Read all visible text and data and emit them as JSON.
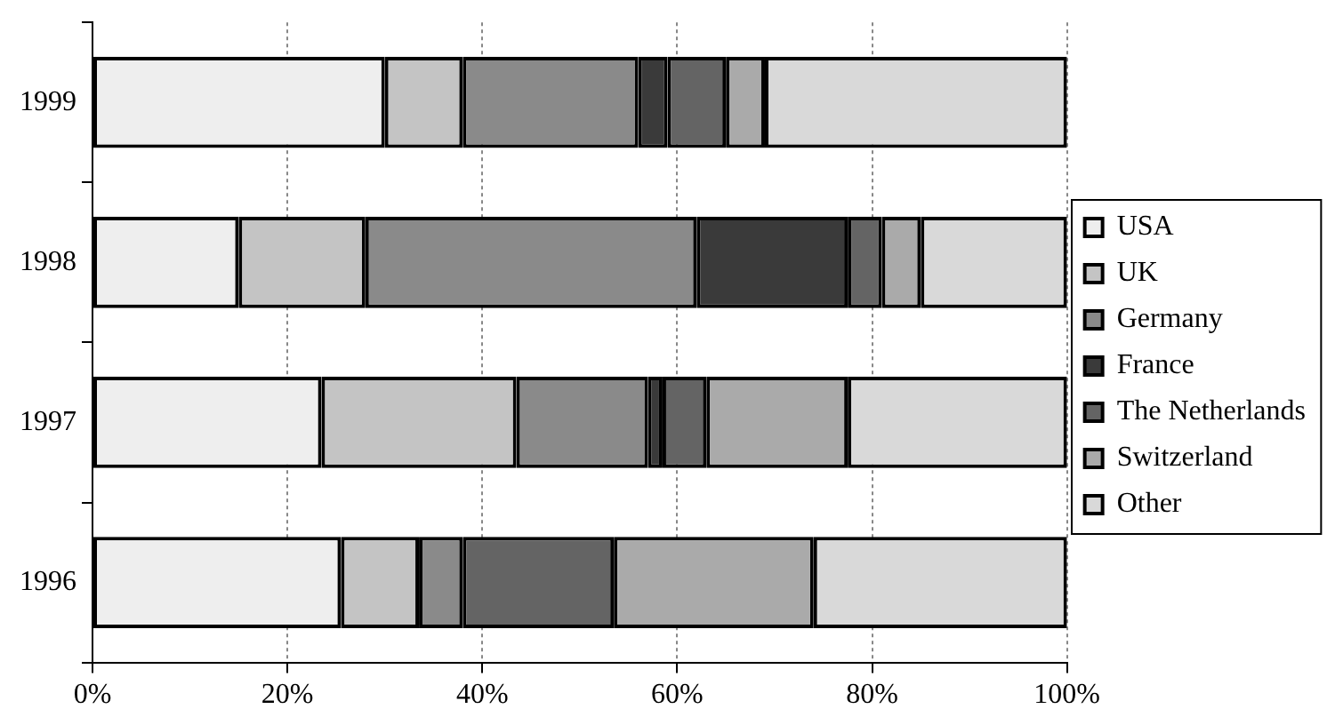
{
  "chart_data": {
    "type": "bar",
    "orientation": "horizontal",
    "stacked": true,
    "categories": [
      "1999",
      "1998",
      "1997",
      "1996"
    ],
    "series": [
      {
        "name": "USA",
        "color": "#eeeeee",
        "values": [
          30,
          15,
          23.5,
          25.5
        ]
      },
      {
        "name": "UK",
        "color": "#c4c4c4",
        "values": [
          8,
          13,
          20,
          8
        ]
      },
      {
        "name": "Germany",
        "color": "#8a8a8a",
        "values": [
          18,
          34,
          13.5,
          4.5
        ]
      },
      {
        "name": "France",
        "color": "#3a3a3a",
        "values": [
          3,
          15.5,
          1.5,
          0
        ]
      },
      {
        "name": "The Netherlands",
        "color": "#646464",
        "values": [
          6,
          3.5,
          4.5,
          15.5
        ]
      },
      {
        "name": "Switzerland",
        "color": "#aaaaaa",
        "values": [
          4,
          4,
          14.5,
          20.5
        ]
      },
      {
        "name": "Other",
        "color": "#d9d9d9",
        "values": [
          31,
          15,
          22.5,
          26
        ]
      }
    ],
    "xlim": [
      0,
      100
    ],
    "xticks": [
      {
        "value": 0,
        "label": "0%"
      },
      {
        "value": 20,
        "label": "20%"
      },
      {
        "value": 40,
        "label": "40%"
      },
      {
        "value": 60,
        "label": "60%"
      },
      {
        "value": 80,
        "label": "80%"
      },
      {
        "value": 100,
        "label": "100%"
      }
    ],
    "grid": "x",
    "legend": "right"
  }
}
